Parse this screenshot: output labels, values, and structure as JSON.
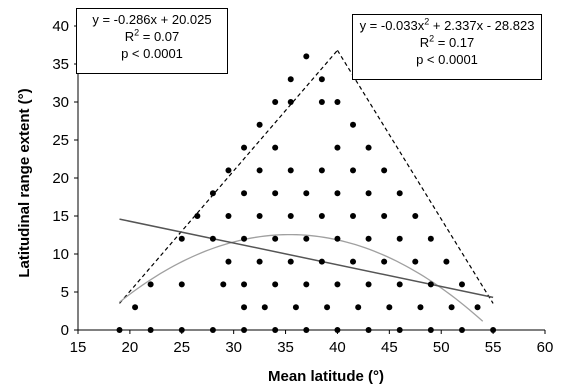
{
  "chart_data": {
    "type": "scatter",
    "xlabel": "Mean latitude (°)",
    "ylabel": "Latitudinal range extent (°)",
    "xlim": [
      15,
      60
    ],
    "ylim": [
      0,
      40
    ],
    "xticks": [
      15,
      20,
      25,
      30,
      35,
      40,
      45,
      50,
      55,
      60
    ],
    "yticks": [
      0,
      5,
      10,
      15,
      20,
      25,
      30,
      35,
      40
    ],
    "grid": false,
    "points": [
      [
        19,
        0
      ],
      [
        22,
        0
      ],
      [
        25,
        0
      ],
      [
        28,
        0
      ],
      [
        31,
        0
      ],
      [
        34,
        0
      ],
      [
        37,
        0
      ],
      [
        40,
        0
      ],
      [
        43,
        0
      ],
      [
        46,
        0
      ],
      [
        49,
        0
      ],
      [
        52,
        0
      ],
      [
        55,
        0
      ],
      [
        20.5,
        3
      ],
      [
        31,
        3
      ],
      [
        33,
        3
      ],
      [
        36,
        3
      ],
      [
        39,
        3
      ],
      [
        42,
        3
      ],
      [
        45,
        3
      ],
      [
        48,
        3
      ],
      [
        51,
        3
      ],
      [
        53.5,
        3
      ],
      [
        22,
        6
      ],
      [
        25,
        6
      ],
      [
        29,
        6
      ],
      [
        31,
        6
      ],
      [
        34,
        6
      ],
      [
        37,
        6
      ],
      [
        40,
        6
      ],
      [
        43,
        6
      ],
      [
        46,
        6
      ],
      [
        49,
        6
      ],
      [
        52,
        6
      ],
      [
        29.5,
        9
      ],
      [
        32.5,
        9
      ],
      [
        35.5,
        9
      ],
      [
        38.5,
        9
      ],
      [
        41.5,
        9
      ],
      [
        44.5,
        9
      ],
      [
        47.5,
        9
      ],
      [
        50.5,
        9
      ],
      [
        25,
        12
      ],
      [
        28,
        12
      ],
      [
        31,
        12
      ],
      [
        34,
        12
      ],
      [
        37,
        12
      ],
      [
        40,
        12
      ],
      [
        43,
        12
      ],
      [
        46,
        12
      ],
      [
        49,
        12
      ],
      [
        26.5,
        15
      ],
      [
        29.5,
        15
      ],
      [
        32.5,
        15
      ],
      [
        35.5,
        15
      ],
      [
        38.5,
        15
      ],
      [
        41.5,
        15
      ],
      [
        44.5,
        15
      ],
      [
        47.5,
        15
      ],
      [
        28,
        18
      ],
      [
        31,
        18
      ],
      [
        34,
        18
      ],
      [
        37,
        18
      ],
      [
        40,
        18
      ],
      [
        43,
        18
      ],
      [
        46,
        18
      ],
      [
        29.5,
        21
      ],
      [
        32.5,
        21
      ],
      [
        35.5,
        21
      ],
      [
        38.5,
        21
      ],
      [
        41.5,
        21
      ],
      [
        44.5,
        21
      ],
      [
        31,
        24
      ],
      [
        34,
        24
      ],
      [
        40,
        24
      ],
      [
        43,
        24
      ],
      [
        32.5,
        27
      ],
      [
        41.5,
        27
      ],
      [
        34,
        30
      ],
      [
        35.5,
        30
      ],
      [
        38.5,
        30
      ],
      [
        40,
        30
      ],
      [
        35.5,
        33
      ],
      [
        38.5,
        33
      ],
      [
        37,
        36
      ]
    ],
    "linear_fit": {
      "slope": -0.286,
      "intercept": 20.025,
      "x_range": [
        19,
        55
      ]
    },
    "quadratic_fit": {
      "a": -0.033,
      "b": 2.337,
      "c": -28.823,
      "x_range": [
        19,
        54
      ]
    },
    "envelope": [
      [
        19,
        3.5
      ],
      [
        40,
        36.8
      ],
      [
        55,
        3.5
      ]
    ],
    "annotations": {
      "linear": {
        "equation": "y = -0.286x + 20.025",
        "r2": "R",
        "r2_sup": "2",
        "r2_value": " = 0.07",
        "p": "p < 0.0001"
      },
      "quadratic": {
        "equation_a": "y = -0.033x",
        "equation_sup": "2",
        "equation_b": " + 2.337x - 28.823",
        "r2": "R",
        "r2_sup": "2",
        "r2_value": " = 0.17",
        "p": "p < 0.0001"
      }
    },
    "colors": {
      "points": "#000000",
      "linear_fit": "#555555",
      "quadratic_fit": "#a0a0a0",
      "envelope": "#000000"
    }
  }
}
